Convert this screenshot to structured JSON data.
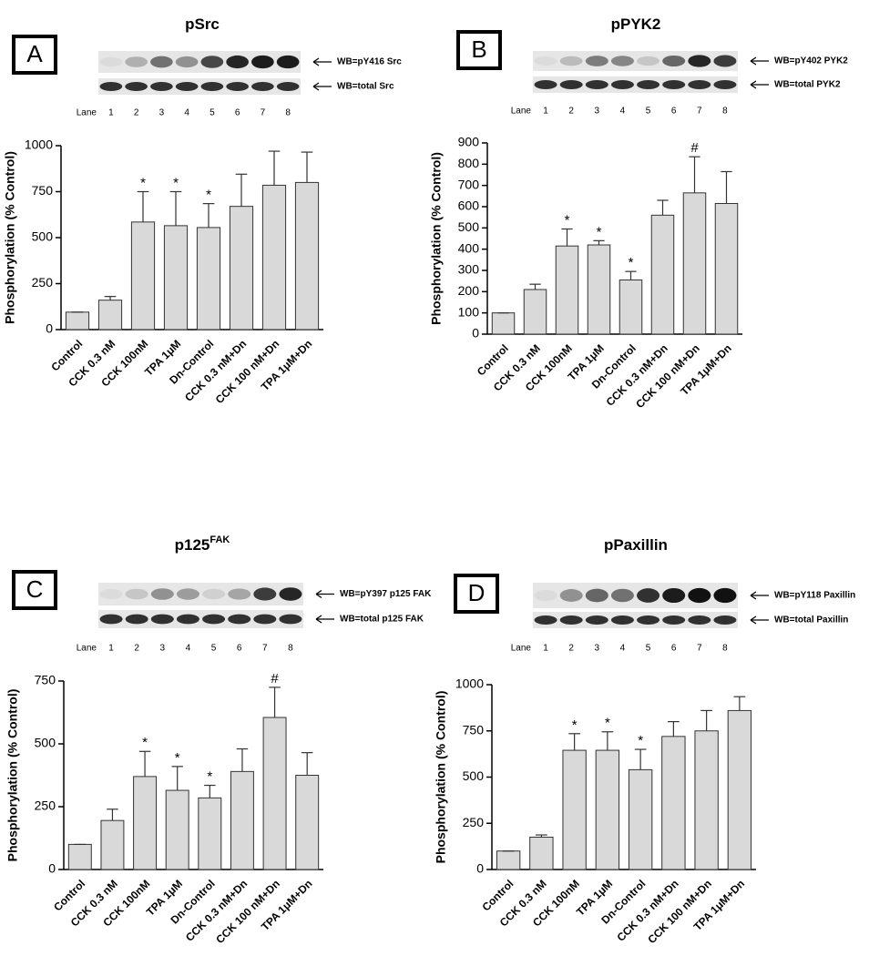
{
  "chart_data": [
    {
      "type": "bar",
      "panel": "A",
      "title": "pSrc",
      "ylabel": "Phosphorylation (% Control)",
      "blot": {
        "labels": [
          "WB=pY416 Src",
          "WB=total Src"
        ],
        "lane_label": "Lane",
        "lanes": [
          "1",
          "2",
          "3",
          "4",
          "5",
          "6",
          "7",
          "8"
        ]
      },
      "categories": [
        "Control",
        "CCK 0.3 nM",
        "CCK 100nM",
        "TPA 1μM",
        "Dn-Control",
        "CCK 0.3 nM+Dn",
        "CCK 100 nM+Dn",
        "TPA 1μM+Dn"
      ],
      "series": [
        {
          "color": "#d9d9d9",
          "values": [
            95,
            160,
            585,
            565,
            555,
            670,
            785,
            800
          ],
          "errors": [
            0,
            20,
            165,
            185,
            130,
            175,
            185,
            165
          ]
        }
      ],
      "markers": [
        null,
        null,
        "*",
        "*",
        "*",
        null,
        null,
        null
      ],
      "ylim": [
        0,
        1000
      ],
      "yticks": [
        0,
        250,
        500,
        750,
        1000
      ]
    },
    {
      "type": "bar",
      "panel": "B",
      "title": "pPYK2",
      "ylabel": "Phosphorylation (% Control)",
      "blot": {
        "labels": [
          "WB=pY402 PYK2",
          "WB=total PYK2"
        ],
        "lane_label": "Lane",
        "lanes": [
          "1",
          "2",
          "3",
          "4",
          "5",
          "6",
          "7",
          "8"
        ]
      },
      "categories": [
        "Control",
        "CCK 0.3 nM",
        "CCK 100nM",
        "TPA 1μM",
        "Dn-Control",
        "CCK 0.3 nM+Dn",
        "CCK 100 nM+Dn",
        "TPA 1μM+Dn"
      ],
      "series": [
        {
          "color": "#d9d9d9",
          "values": [
            100,
            210,
            415,
            420,
            255,
            560,
            665,
            615
          ],
          "errors": [
            0,
            25,
            80,
            20,
            40,
            70,
            170,
            150
          ]
        }
      ],
      "markers": [
        null,
        null,
        "*",
        "*",
        "*",
        null,
        "#",
        null
      ],
      "ylim": [
        0,
        900
      ],
      "yticks": [
        0,
        100,
        200,
        300,
        400,
        500,
        600,
        700,
        800,
        900
      ]
    },
    {
      "type": "bar",
      "panel": "C",
      "title": "p125",
      "title_sup": "FAK",
      "ylabel": "Phosphorylation (% Control)",
      "blot": {
        "labels": [
          "WB=pY397 p125 FAK",
          "WB=total p125 FAK"
        ],
        "lane_label": "Lane",
        "lanes": [
          "1",
          "2",
          "3",
          "4",
          "5",
          "6",
          "7",
          "8"
        ]
      },
      "categories": [
        "Control",
        "CCK 0.3 nM",
        "CCK 100nM",
        "TPA 1μM",
        "Dn-Control",
        "CCK 0.3 nM+Dn",
        "CCK 100 nM+Dn",
        "TPA 1μM+Dn"
      ],
      "series": [
        {
          "color": "#d9d9d9",
          "values": [
            100,
            195,
            370,
            315,
            285,
            390,
            605,
            375
          ],
          "errors": [
            0,
            45,
            100,
            95,
            50,
            90,
            120,
            90
          ]
        }
      ],
      "markers": [
        null,
        null,
        "*",
        "*",
        "*",
        null,
        "#",
        null
      ],
      "ylim": [
        0,
        750
      ],
      "yticks": [
        0,
        250,
        500,
        750
      ]
    },
    {
      "type": "bar",
      "panel": "D",
      "title": "pPaxillin",
      "ylabel": "Phosphorylation (% Control)",
      "blot": {
        "labels": [
          "WB=pY118 Paxillin",
          "WB=total Paxillin"
        ],
        "lane_label": "Lane",
        "lanes": [
          "1",
          "2",
          "3",
          "4",
          "5",
          "6",
          "7",
          "8"
        ]
      },
      "categories": [
        "Control",
        "CCK 0.3 nM",
        "CCK 100nM",
        "TPA 1μM",
        "Dn-Control",
        "CCK 0.3 nM+Dn",
        "CCK 100 nM+Dn",
        "TPA 1μM+Dn"
      ],
      "series": [
        {
          "color": "#d9d9d9",
          "values": [
            100,
            175,
            645,
            645,
            540,
            720,
            750,
            860
          ],
          "errors": [
            0,
            12,
            90,
            100,
            110,
            80,
            110,
            75
          ]
        }
      ],
      "markers": [
        null,
        null,
        "*",
        "*",
        "*",
        null,
        null,
        null
      ],
      "ylim": [
        0,
        1000
      ],
      "yticks": [
        0,
        250,
        500,
        750,
        1000
      ]
    }
  ]
}
